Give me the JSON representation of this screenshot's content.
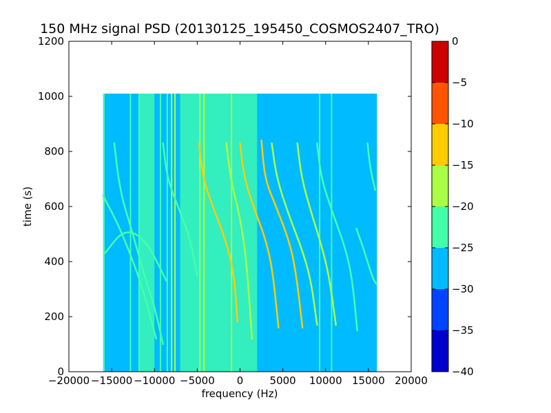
{
  "chart_data": {
    "type": "heatmap",
    "title": "150 MHz signal PSD (20130125_195450_COSMOS2407_TRO)",
    "xlabel": "frequency (Hz)",
    "ylabel": "time (s)",
    "xlim": [
      -20000,
      20000
    ],
    "ylim": [
      0,
      1200
    ],
    "xticks": [
      -20000,
      -15000,
      -10000,
      -5000,
      0,
      5000,
      10000,
      15000,
      20000
    ],
    "yticks": [
      0,
      200,
      400,
      600,
      800,
      1000,
      1200
    ],
    "data_extent": {
      "x": [
        -16000,
        16000
      ],
      "y": [
        0,
        1010
      ]
    },
    "background_level_db": -27.5,
    "grid": false,
    "colorbar": {
      "range": [
        -40,
        0
      ],
      "ticks": [
        0,
        -5,
        -10,
        -15,
        -20,
        -25,
        -30,
        -35,
        -40
      ],
      "bands": [
        {
          "from": -40,
          "to": -35,
          "color": "#0000cc"
        },
        {
          "from": -35,
          "to": -30,
          "color": "#0044ff"
        },
        {
          "from": -30,
          "to": -25,
          "color": "#00bbff"
        },
        {
          "from": -25,
          "to": -20,
          "color": "#44ffaa"
        },
        {
          "from": -20,
          "to": -15,
          "color": "#aaff44"
        },
        {
          "from": -15,
          "to": -10,
          "color": "#ffcc00"
        },
        {
          "from": -10,
          "to": -5,
          "color": "#ff5500"
        },
        {
          "from": -5,
          "to": 0,
          "color": "#cc0000"
        }
      ]
    },
    "noise_bands": [
      {
        "x": [
          -11800,
          -10000
        ],
        "level_db": -22.5
      },
      {
        "x": [
          -7000,
          0
        ],
        "level_db": -22.5
      },
      {
        "x": [
          0,
          2000
        ],
        "level_db": -22.5
      }
    ],
    "vertical_lines": [
      {
        "x": -15900,
        "level_db": -22.5
      },
      {
        "x": -12800,
        "level_db": -22.5
      },
      {
        "x": -11800,
        "level_db": -22.5
      },
      {
        "x": -9300,
        "level_db": -22.5
      },
      {
        "x": -8500,
        "level_db": -22.5
      },
      {
        "x": -8000,
        "level_db": -17.5
      },
      {
        "x": -7600,
        "level_db": -17.5
      },
      {
        "x": -4700,
        "level_db": -17.5
      },
      {
        "x": -4200,
        "level_db": -17.5
      },
      {
        "x": -1000,
        "level_db": -17.5
      },
      {
        "x": 9300,
        "level_db": -22.5
      },
      {
        "x": 10700,
        "level_db": -22.5
      }
    ],
    "tracks": [
      {
        "points": [
          [
            -16000,
            640
          ],
          [
            -14000,
            520
          ],
          [
            -12000,
            360
          ],
          [
            -11000,
            260
          ],
          [
            -9800,
            120
          ]
        ],
        "level_db": -22.5
      },
      {
        "points": [
          [
            -15800,
            430
          ],
          [
            -13500,
            520
          ],
          [
            -11000,
            480
          ],
          [
            -8600,
            330
          ]
        ],
        "level_db": -22.5
      },
      {
        "points": [
          [
            -14700,
            830
          ],
          [
            -14000,
            650
          ],
          [
            -12500,
            500
          ],
          [
            -11200,
            350
          ],
          [
            -10000,
            240
          ],
          [
            -9000,
            100
          ]
        ],
        "level_db": -22.5
      },
      {
        "points": [
          [
            -9000,
            830
          ],
          [
            -8500,
            700
          ],
          [
            -7000,
            580
          ],
          [
            -5800,
            480
          ],
          [
            -5000,
            350
          ]
        ],
        "level_db": -22.5
      },
      {
        "points": [
          [
            -4800,
            830
          ],
          [
            -4300,
            700
          ],
          [
            -3200,
            600
          ],
          [
            -1800,
            490
          ],
          [
            -700,
            360
          ],
          [
            -300,
            180
          ]
        ],
        "level_db": -12.5
      },
      {
        "points": [
          [
            -1600,
            830
          ],
          [
            -1100,
            700
          ],
          [
            0,
            560
          ],
          [
            600,
            440
          ],
          [
            1000,
            300
          ],
          [
            1400,
            120
          ]
        ],
        "level_db": -17.5
      },
      {
        "points": [
          [
            0,
            830
          ],
          [
            500,
            700
          ],
          [
            1800,
            580
          ],
          [
            3000,
            480
          ],
          [
            3800,
            370
          ],
          [
            4500,
            160
          ]
        ],
        "level_db": -12.5
      },
      {
        "points": [
          [
            2500,
            840
          ],
          [
            2900,
            700
          ],
          [
            4200,
            600
          ],
          [
            5700,
            480
          ],
          [
            6500,
            370
          ],
          [
            7300,
            160
          ]
        ],
        "level_db": -12.5
      },
      {
        "points": [
          [
            3700,
            830
          ],
          [
            4300,
            700
          ],
          [
            5800,
            560
          ],
          [
            7300,
            440
          ],
          [
            8300,
            330
          ],
          [
            9000,
            170
          ]
        ],
        "level_db": -17.5
      },
      {
        "points": [
          [
            6700,
            830
          ],
          [
            7200,
            700
          ],
          [
            8400,
            570
          ],
          [
            9700,
            440
          ],
          [
            10500,
            330
          ],
          [
            11200,
            170
          ]
        ],
        "level_db": -17.5
      },
      {
        "points": [
          [
            9000,
            830
          ],
          [
            9500,
            700
          ],
          [
            10900,
            570
          ],
          [
            12300,
            450
          ],
          [
            13100,
            340
          ],
          [
            13700,
            150
          ]
        ],
        "level_db": -22.5
      },
      {
        "points": [
          [
            13600,
            520
          ],
          [
            14500,
            440
          ],
          [
            15500,
            340
          ],
          [
            15900,
            320
          ]
        ],
        "level_db": -22.5
      },
      {
        "points": [
          [
            14900,
            830
          ],
          [
            15200,
            740
          ],
          [
            15800,
            660
          ]
        ],
        "level_db": -22.5
      }
    ]
  }
}
